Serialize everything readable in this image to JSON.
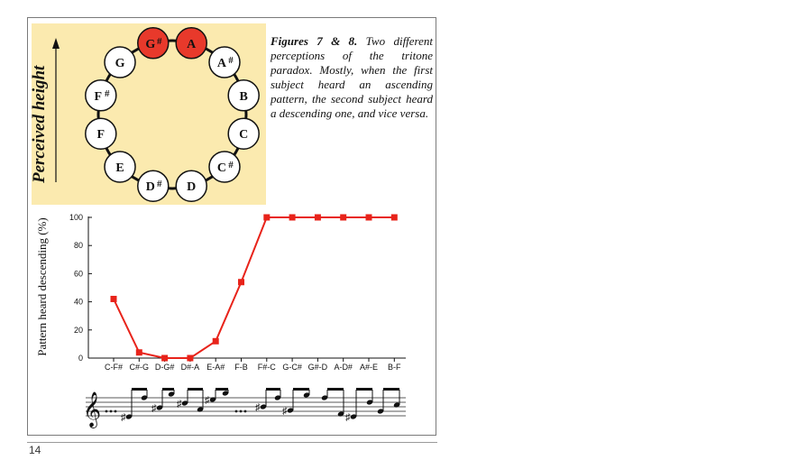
{
  "caption": {
    "title": "Figures 7 & 8.",
    "text": "Two different perceptions of the tritone paradox. Mostly, when the first subject heard an ascending pattern, the second subject heard a descending one, and vice versa."
  },
  "pitch_circle": {
    "axis_label": "Perceived height",
    "highlight_color": "#e8392b",
    "panel_color": "#fbeaaf",
    "notes": [
      {
        "name": "G",
        "sharp": true,
        "highlighted": true
      },
      {
        "name": "A",
        "sharp": false,
        "highlighted": true
      },
      {
        "name": "A",
        "sharp": true,
        "highlighted": false
      },
      {
        "name": "B",
        "sharp": false,
        "highlighted": false
      },
      {
        "name": "C",
        "sharp": false,
        "highlighted": false
      },
      {
        "name": "C",
        "sharp": true,
        "highlighted": false
      },
      {
        "name": "D",
        "sharp": false,
        "highlighted": false
      },
      {
        "name": "D",
        "sharp": true,
        "highlighted": false
      },
      {
        "name": "E",
        "sharp": false,
        "highlighted": false
      },
      {
        "name": "F",
        "sharp": false,
        "highlighted": false
      },
      {
        "name": "F",
        "sharp": true,
        "highlighted": false
      },
      {
        "name": "G",
        "sharp": false,
        "highlighted": false
      }
    ]
  },
  "chart_data": {
    "type": "line",
    "ylabel": "Pattern heard descending (%)",
    "categories": [
      "C-F#",
      "C#-G",
      "D-G#",
      "D#-A",
      "E-A#",
      "F-B",
      "F#-C",
      "G-C#",
      "G#-D",
      "A-D#",
      "A#-E",
      "B-F"
    ],
    "values": [
      42,
      4,
      0,
      0,
      12,
      54,
      100,
      100,
      100,
      100,
      100,
      100
    ],
    "ylim": [
      0,
      100
    ],
    "yticks": [
      "0",
      "20",
      "40",
      "60",
      "80",
      "100"
    ],
    "color": "#e8231a",
    "grid": false
  },
  "page": {
    "number": "14"
  }
}
